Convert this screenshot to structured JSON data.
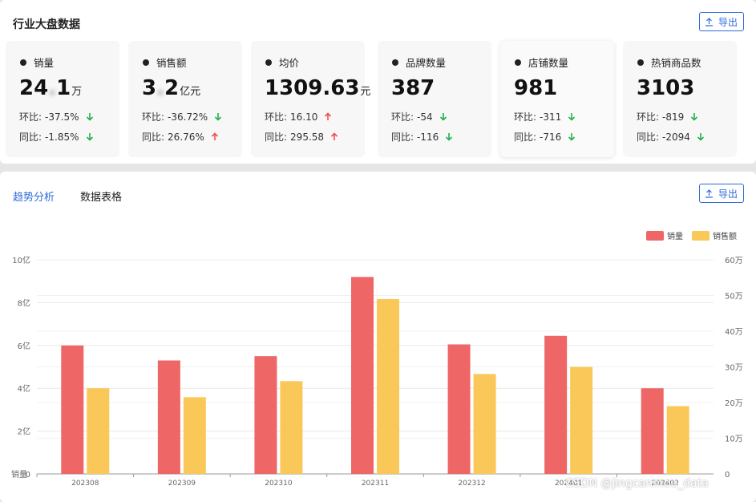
{
  "overview": {
    "title": "行业大盘数据",
    "export_label": "导出",
    "cards": [
      {
        "label": "销量",
        "value": "24.1",
        "unit": "万",
        "mom_label": "环比:",
        "mom": "-37.5%",
        "mom_dir": "down",
        "yoy_label": "同比:",
        "yoy": "-1.85%",
        "yoy_dir": "down",
        "blurred": true
      },
      {
        "label": "销售额",
        "value": "3.2",
        "unit": "亿元",
        "mom_label": "环比:",
        "mom": "-36.72%",
        "mom_dir": "down",
        "yoy_label": "同比:",
        "yoy": "26.76%",
        "yoy_dir": "up",
        "blurred": true
      },
      {
        "label": "均价",
        "value": "1309.63",
        "unit": "元",
        "mom_label": "环比:",
        "mom": "16.10",
        "mom_dir": "up",
        "yoy_label": "同比:",
        "yoy": "295.58",
        "yoy_dir": "up",
        "blurred": false
      },
      {
        "label": "品牌数量",
        "value": "387",
        "unit": "",
        "mom_label": "环比:",
        "mom": "-54",
        "mom_dir": "down",
        "yoy_label": "同比:",
        "yoy": "-116",
        "yoy_dir": "down",
        "blurred": false
      },
      {
        "label": "店铺数量",
        "value": "981",
        "unit": "",
        "mom_label": "环比:",
        "mom": "-311",
        "mom_dir": "down",
        "yoy_label": "同比:",
        "yoy": "-716",
        "yoy_dir": "down",
        "blurred": false
      },
      {
        "label": "热销商品数",
        "value": "3103",
        "unit": "",
        "mom_label": "环比:",
        "mom": "-819",
        "mom_dir": "down",
        "yoy_label": "同比:",
        "yoy": "-2094",
        "yoy_dir": "down",
        "blurred": false
      }
    ]
  },
  "analysis": {
    "tabs": [
      {
        "label": "趋势分析",
        "active": true
      },
      {
        "label": "数据表格",
        "active": false
      }
    ],
    "export_label": "导出"
  },
  "colors": {
    "accent": "#2f6bd8",
    "down": "#22b14c",
    "up": "#f24e4e",
    "series1": "#ee6666",
    "series2": "#fac858"
  },
  "watermark": "CSDN @jingcanmou_data",
  "chart_data": {
    "type": "bar",
    "categories": [
      "202308",
      "202309",
      "202310",
      "202311",
      "202312",
      "202401",
      "202402"
    ],
    "series": [
      {
        "name": "销量",
        "axis": "left",
        "values": [
          6.0,
          5.3,
          5.5,
          9.2,
          6.05,
          6.45,
          4.0
        ]
      },
      {
        "name": "销售额",
        "axis": "right",
        "values": [
          24,
          21.5,
          26,
          49,
          28,
          30,
          19
        ]
      }
    ],
    "y_left": {
      "ticks": [
        "0",
        "2亿",
        "4亿",
        "6亿",
        "8亿",
        "10亿"
      ],
      "range": [
        0,
        10
      ],
      "corner_label": "销量"
    },
    "y_right": {
      "ticks": [
        "0",
        "10万",
        "20万",
        "30万",
        "40万",
        "50万",
        "60万"
      ],
      "range": [
        0,
        60
      ]
    },
    "legend_position": "top-right",
    "grid": true
  }
}
